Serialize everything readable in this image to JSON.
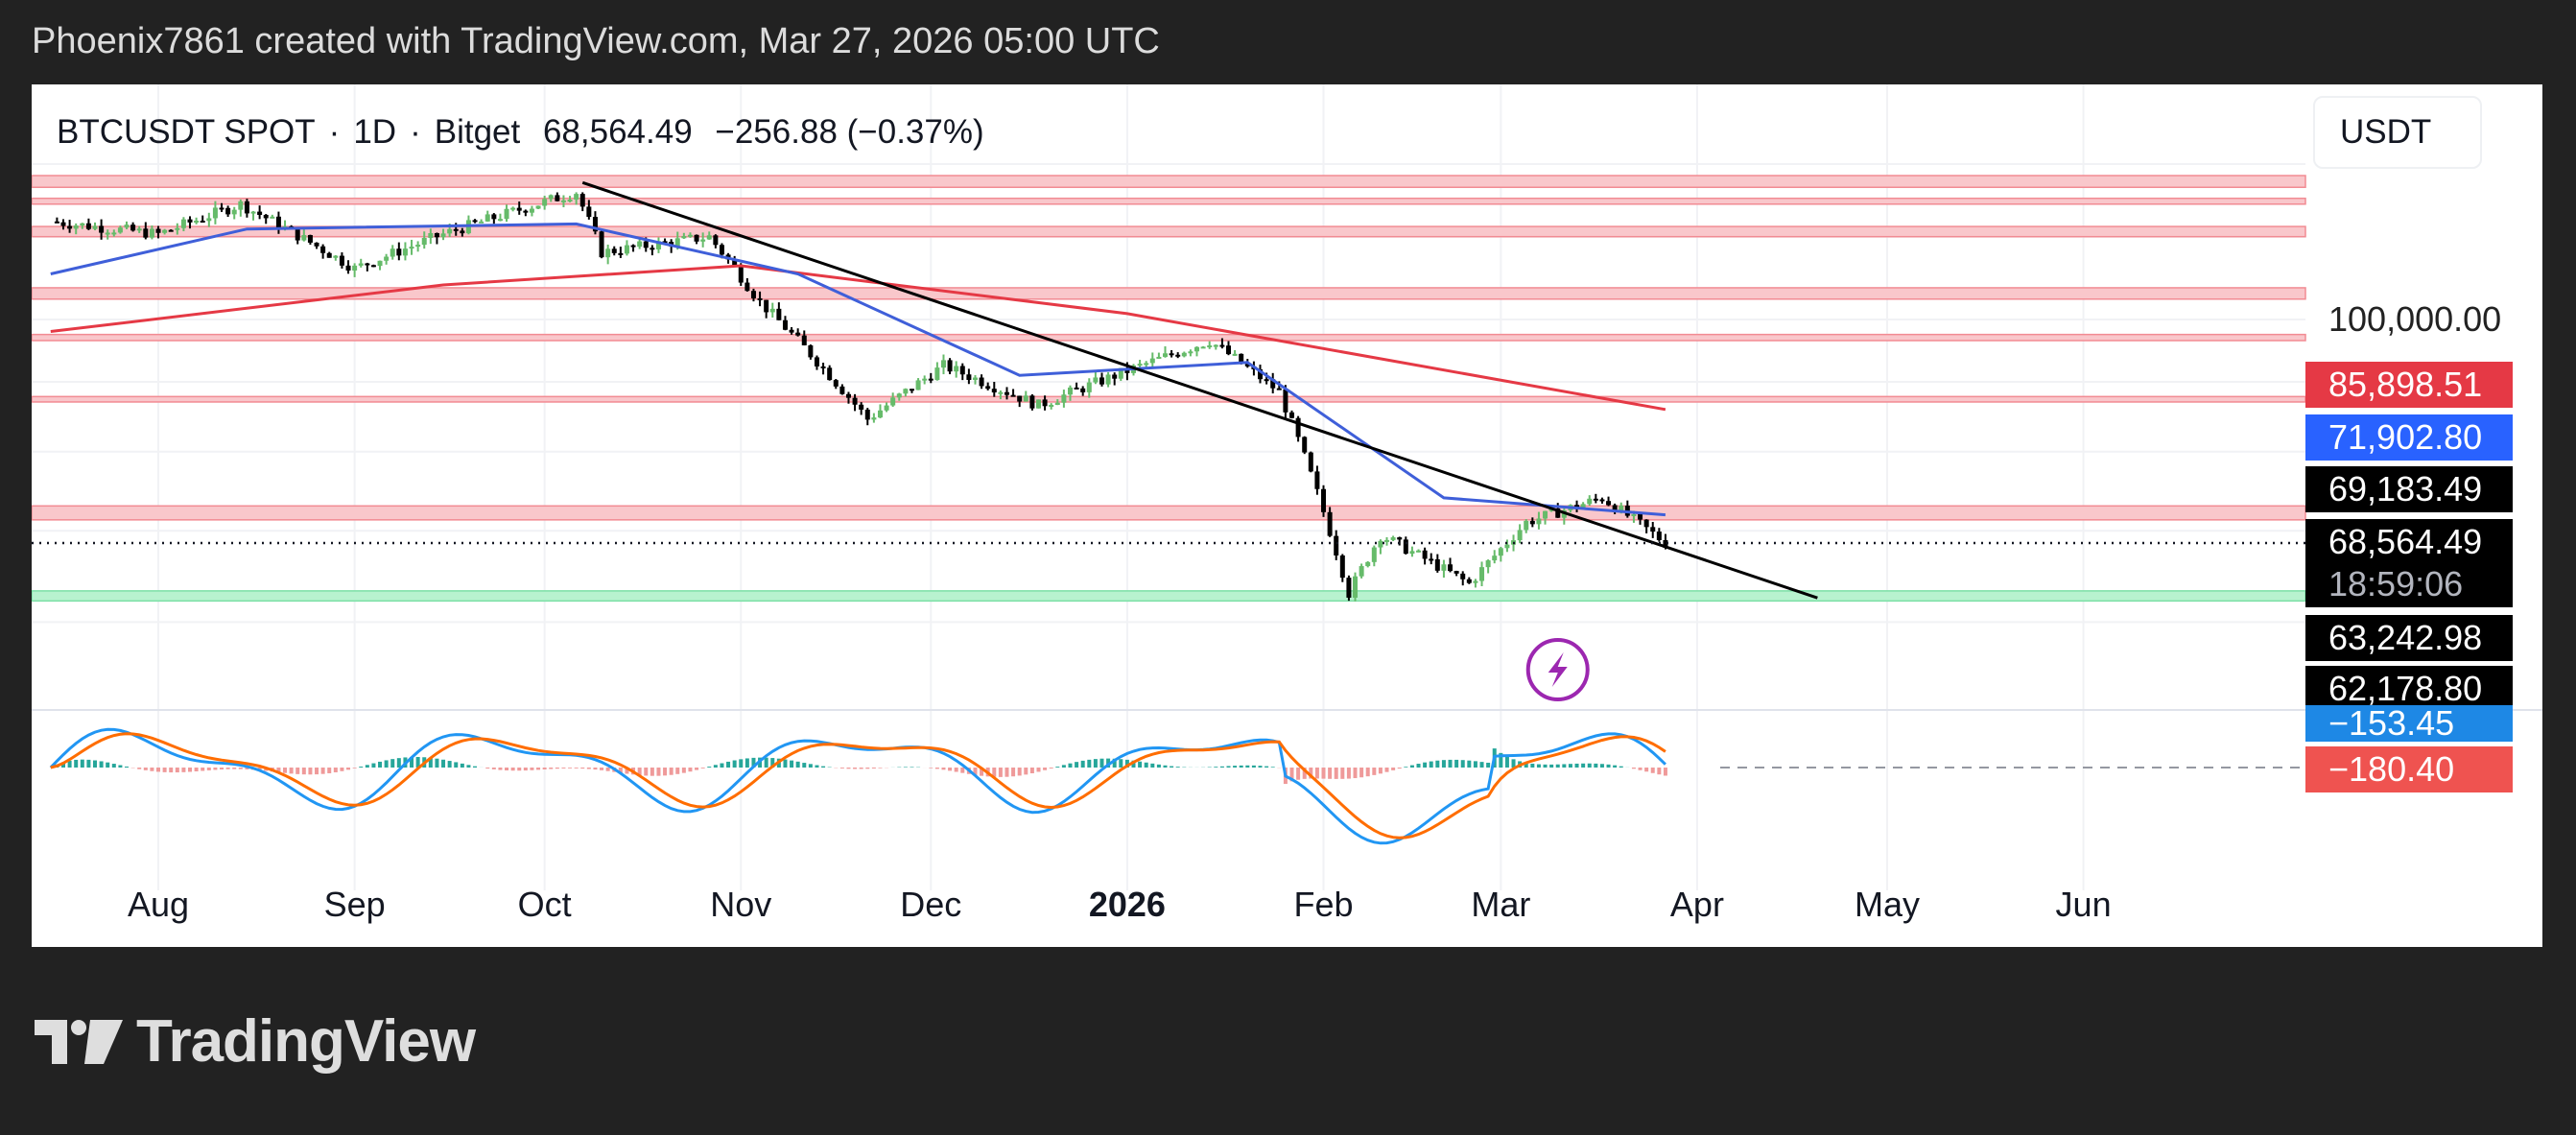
{
  "header": {
    "attribution": "Phoenix7861 created with TradingView.com, Mar 27, 2026 05:00 UTC"
  },
  "symbol": {
    "name": "BTCUSDT SPOT",
    "interval": "1D",
    "exchange": "Bitget",
    "last": "68,564.49",
    "change": "−256.88 (−0.37%)"
  },
  "currency_button": "USDT",
  "footer": {
    "brand": "TradingView"
  },
  "price_labels": [
    {
      "text": "100,000.00",
      "bg": "",
      "fg": "#131722"
    },
    {
      "text": "85,898.51",
      "bg": "#e53945",
      "fg": "#ffffff"
    },
    {
      "text": "71,902.80",
      "bg": "#2962ff",
      "fg": "#ffffff"
    },
    {
      "text": "69,183.49",
      "bg": "#000000",
      "fg": "#ffffff"
    },
    {
      "text": "68,564.49",
      "bg": "#000000",
      "fg": "#ffffff"
    },
    {
      "text": "18:59:06",
      "bg": "#000000",
      "fg": "#b2b5be"
    },
    {
      "text": "63,242.98",
      "bg": "#000000",
      "fg": "#ffffff"
    },
    {
      "text": "62,178.80",
      "bg": "#000000",
      "fg": "#ffffff"
    },
    {
      "text": "−153.45",
      "bg": "#1e88e5",
      "fg": "#ffffff"
    },
    {
      "text": "−180.40",
      "bg": "#ef5350",
      "fg": "#ffffff"
    }
  ],
  "chart_data": {
    "type": "candlestick",
    "symbol": "BTCUSDT SPOT",
    "x_ticks": [
      "Aug",
      "Sep",
      "Oct",
      "Nov",
      "Dec",
      "2026",
      "Feb",
      "Mar",
      "Apr",
      "May",
      "Jun"
    ],
    "y_ticks": [
      "100,000.00"
    ],
    "price_series": [
      {
        "date": "2025-07-15",
        "close": 118000
      },
      {
        "date": "2025-08-01",
        "close": 115500
      },
      {
        "date": "2025-08-14",
        "close": 121500
      },
      {
        "date": "2025-09-01",
        "close": 109000
      },
      {
        "date": "2025-09-15",
        "close": 115500
      },
      {
        "date": "2025-10-06",
        "close": 124000
      },
      {
        "date": "2025-10-10",
        "close": 112000
      },
      {
        "date": "2025-10-27",
        "close": 115000
      },
      {
        "date": "2025-11-04",
        "close": 103000
      },
      {
        "date": "2025-11-21",
        "close": 84500
      },
      {
        "date": "2025-12-03",
        "close": 92500
      },
      {
        "date": "2025-12-18",
        "close": 86500
      },
      {
        "date": "2026-01-14",
        "close": 96500
      },
      {
        "date": "2026-01-25",
        "close": 88500
      },
      {
        "date": "2026-02-05",
        "close": 63000
      },
      {
        "date": "2026-02-10",
        "close": 69500
      },
      {
        "date": "2026-02-24",
        "close": 64000
      },
      {
        "date": "2026-03-05",
        "close": 71000
      },
      {
        "date": "2026-03-17",
        "close": 74000
      },
      {
        "date": "2026-03-27",
        "close": 68564.49
      }
    ],
    "ma_blue": [
      {
        "date": "2025-07-15",
        "value": 108000
      },
      {
        "date": "2025-08-15",
        "value": 116500
      },
      {
        "date": "2025-10-06",
        "value": 117500
      },
      {
        "date": "2025-11-10",
        "value": 108000
      },
      {
        "date": "2025-12-15",
        "value": 91000
      },
      {
        "date": "2026-01-20",
        "value": 93000
      },
      {
        "date": "2026-02-20",
        "value": 74000
      },
      {
        "date": "2026-03-27",
        "value": 71902.8
      }
    ],
    "ma_red": [
      {
        "date": "2025-07-15",
        "value": 98000
      },
      {
        "date": "2025-09-15",
        "value": 106000
      },
      {
        "date": "2025-11-01",
        "value": 109500
      },
      {
        "date": "2026-01-01",
        "value": 101000
      },
      {
        "date": "2026-03-27",
        "value": 85898.51
      }
    ],
    "trendline": {
      "start": {
        "date": "2025-10-07",
        "value": 126000
      },
      "end": {
        "date": "2026-04-20",
        "value": 62500
      }
    },
    "resistance_zones": [
      {
        "low": 125000,
        "high": 127500
      },
      {
        "low": 121500,
        "high": 122700
      },
      {
        "low": 115000,
        "high": 117000
      },
      {
        "low": 103500,
        "high": 105500
      },
      {
        "low": 96500,
        "high": 97500
      },
      {
        "low": 87000,
        "high": 87800
      },
      {
        "low": 71300,
        "high": 73000
      }
    ],
    "support_zone": {
      "low": 62178.8,
      "high": 63242.98
    },
    "last_price": 68564.49,
    "macd": {
      "macd_last": -153.45,
      "signal_last": -180.4,
      "colors": {
        "macd": "#2196f3",
        "signal": "#ff6d00"
      }
    },
    "colors": {
      "up": "#66bb6a",
      "down": "#000000",
      "ma_blue": "#3f5fd9",
      "ma_red": "#e53945",
      "zone_red": "#f9c7cb",
      "zone_green": "#b8f2cf"
    }
  }
}
